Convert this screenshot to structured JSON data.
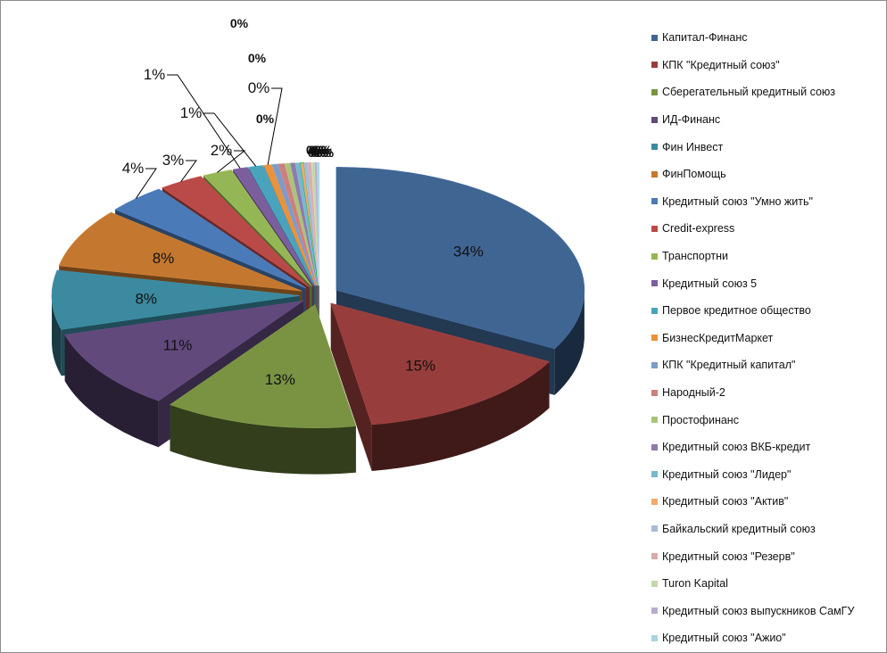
{
  "chart_data": {
    "type": "pie",
    "title": "",
    "legend_position": "right",
    "slices": [
      {
        "label": "Капитал-Финанс",
        "value": 34,
        "value_label": "34%",
        "color": "#3f6593"
      },
      {
        "label": "КПК \"Кредитный союз\"",
        "value": 15,
        "value_label": "15%",
        "color": "#973e3c"
      },
      {
        "label": "Сберегательный кредитный союз",
        "value": 13,
        "value_label": "13%",
        "color": "#799343"
      },
      {
        "label": "ИД-Финанс",
        "value": 11,
        "value_label": "11%",
        "color": "#61497c"
      },
      {
        "label": "Фин Инвест",
        "value": 8,
        "value_label": "8%",
        "color": "#3b8a9f"
      },
      {
        "label": "ФинПомощь",
        "value": 8,
        "value_label": "8%",
        "color": "#c4782f"
      },
      {
        "label": "Кредитный союз \"Умно жить\"",
        "value": 4,
        "value_label": "4%",
        "color": "#4a7ab8"
      },
      {
        "label": "Credit-express",
        "value": 3,
        "value_label": "3%",
        "color": "#b94a48"
      },
      {
        "label": "Транспортни",
        "value": 2,
        "value_label": "2%",
        "color": "#95b655"
      },
      {
        "label": "Кредитный союз 5",
        "value": 1,
        "value_label": "1%",
        "color": "#7b5e9c"
      },
      {
        "label": "Первое кредитное общество",
        "value": 1,
        "value_label": "1%",
        "color": "#4aa3bd"
      },
      {
        "label": "БизнесКредитМаркет",
        "value": 0.5,
        "value_label": "0%",
        "color": "#e8923c"
      },
      {
        "label": "КПК \"Кредитный капитал\"",
        "value": 0.4,
        "value_label": "0%",
        "color": "#7e9bc8"
      },
      {
        "label": "Народный-2",
        "value": 0.4,
        "value_label": "0%",
        "color": "#cc7f7d"
      },
      {
        "label": "Простофинанс",
        "value": 0.35,
        "value_label": "0%",
        "color": "#a9c47a"
      },
      {
        "label": "Кредитный союз ВКБ-кредит",
        "value": 0.3,
        "value_label": "0%",
        "color": "#8f79ad"
      },
      {
        "label": "Кредитный союз \"Лидер\"",
        "value": 0.3,
        "value_label": "0%",
        "color": "#77b8cc"
      },
      {
        "label": "Кредитный союз \"Актив\"",
        "value": 0.25,
        "value_label": "0%",
        "color": "#f0a96a"
      },
      {
        "label": "Байкальский кредитный союз",
        "value": 0.25,
        "value_label": "0%",
        "color": "#a9bad8"
      },
      {
        "label": "Кредитный союз \"Резерв\"",
        "value": 0.2,
        "value_label": "0%",
        "color": "#dcaaa9"
      },
      {
        "label": "Turon Kapital",
        "value": 0.2,
        "value_label": "0%",
        "color": "#c3d8a9"
      },
      {
        "label": "Кредитный союз выпускников СамГУ",
        "value": 0.15,
        "value_label": "0%",
        "color": "#b9acd0"
      },
      {
        "label": "Кредитный союз \"Ажио\"",
        "value": 0.15,
        "value_label": "0%",
        "color": "#a9d3e0"
      }
    ]
  }
}
